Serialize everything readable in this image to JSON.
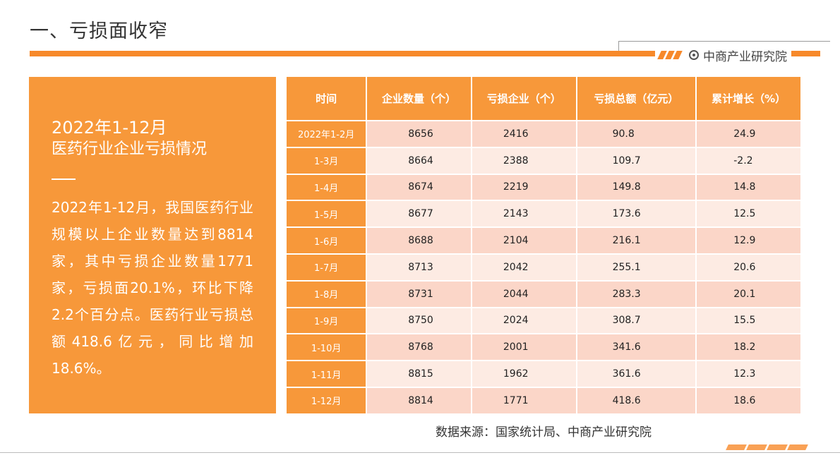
{
  "header": {
    "title": "一、亏损面收窄",
    "brand": "中商产业研究院"
  },
  "panel": {
    "heading_line1": "2022年1-12月",
    "heading_line2": "医药行业企业亏损情况",
    "body": "2022年1-12月，我国医药行业规模以上企业数量达到8814家，其中亏损企业数量1771家，亏损面20.1%，环比下降2.2个百分点。医药行业亏损总额418.6亿元，同比增加18.6%。"
  },
  "table": {
    "headers": [
      "时间",
      "企业数量（个）",
      "亏损企业（个）",
      "亏损总额（亿元）",
      "累计增长（%）"
    ],
    "rows": [
      [
        "2022年1-2月",
        "8656",
        "2416",
        "90.8",
        "24.9"
      ],
      [
        "1-3月",
        "8664",
        "2388",
        "109.7",
        "-2.2"
      ],
      [
        "1-4月",
        "8674",
        "2219",
        "149.8",
        "14.8"
      ],
      [
        "1-5月",
        "8677",
        "2143",
        "173.6",
        "12.5"
      ],
      [
        "1-6月",
        "8688",
        "2104",
        "216.1",
        "12.9"
      ],
      [
        "1-7月",
        "8713",
        "2042",
        "255.1",
        "20.6"
      ],
      [
        "1-8月",
        "8731",
        "2044",
        "283.3",
        "20.1"
      ],
      [
        "1-9月",
        "8750",
        "2024",
        "308.7",
        "15.5"
      ],
      [
        "1-10月",
        "8768",
        "2001",
        "341.6",
        "18.2"
      ],
      [
        "1-11月",
        "8815",
        "1962",
        "361.6",
        "12.3"
      ],
      [
        "1-12月",
        "8814",
        "1771",
        "418.6",
        "18.6"
      ]
    ]
  },
  "footer": {
    "source": "数据来源：国家统计局、中商产业研究院"
  },
  "colors": {
    "accent": "#f7983a",
    "row_dark": "#fbd6c8",
    "row_light": "#fdebe3"
  }
}
